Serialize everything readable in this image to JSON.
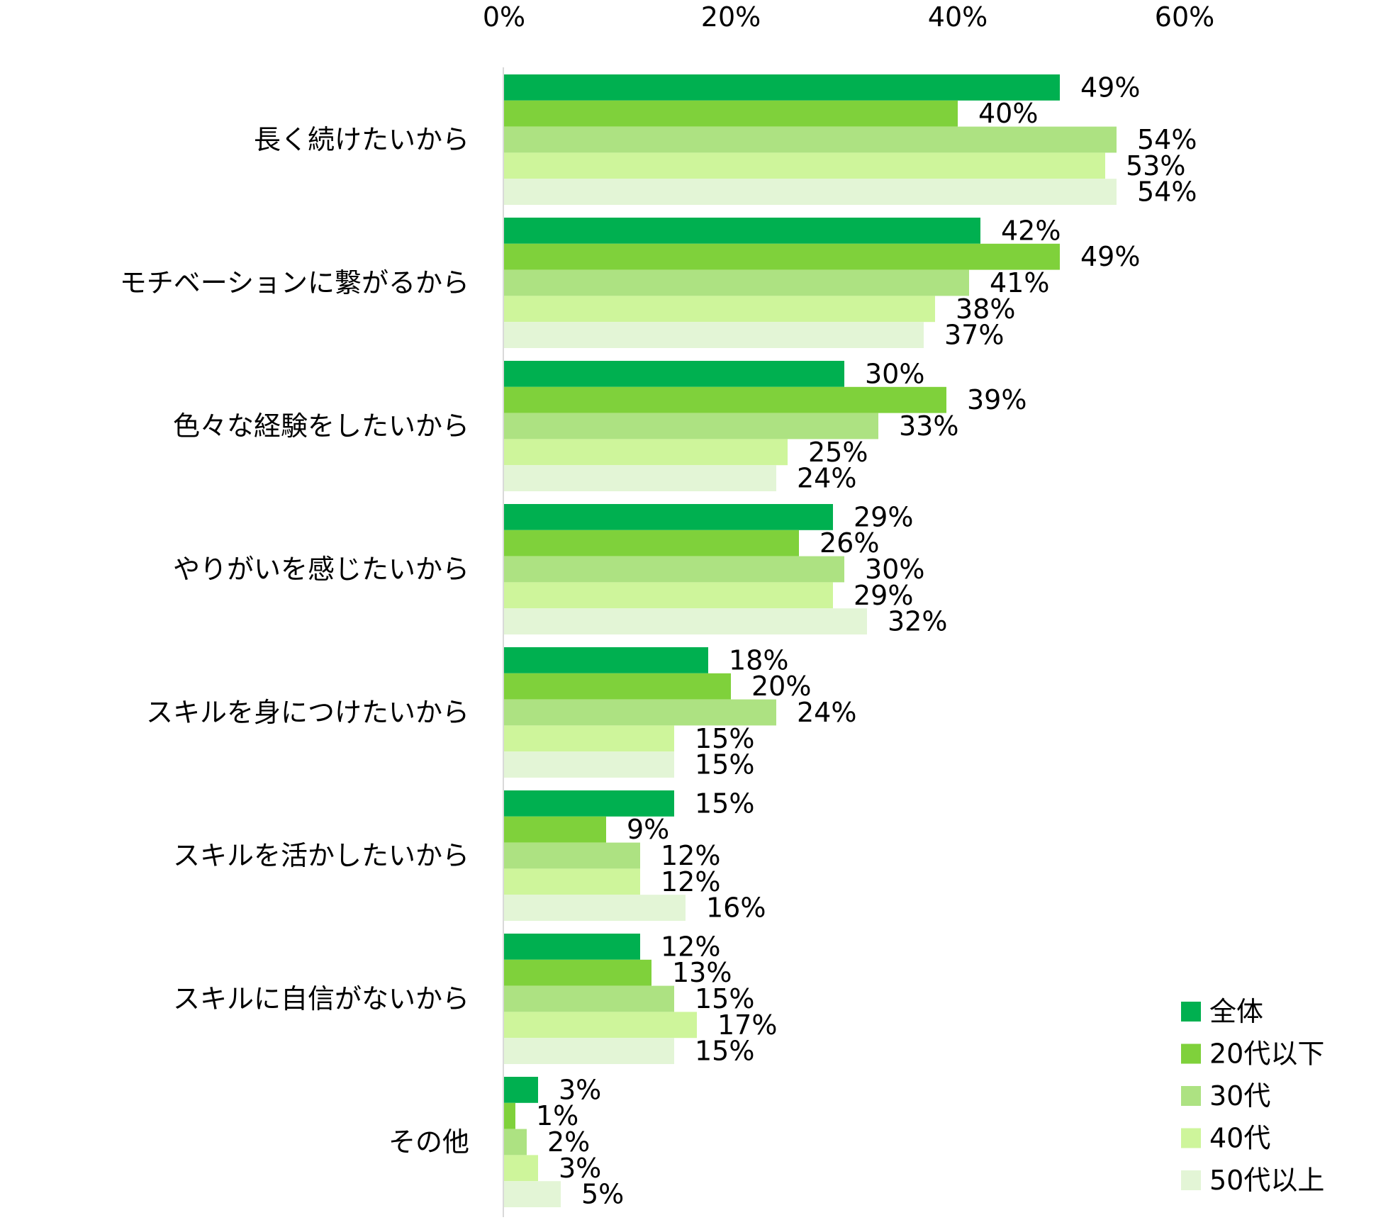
{
  "chart_data": {
    "type": "bar",
    "orientation": "horizontal",
    "title": "",
    "xlabel": "",
    "ylabel": "",
    "xlim": [
      0,
      60
    ],
    "x_ticks": [
      0,
      20,
      40,
      60
    ],
    "x_tick_labels": [
      "0%",
      "20%",
      "40%",
      "60%"
    ],
    "x_axis_position": "top",
    "grid": false,
    "legend_position": "bottom-right",
    "value_suffix": "%",
    "categories": [
      "長く続けたいから",
      "モチベーションに繋がるから",
      "色々な経験をしたいから",
      "やりがいを感じたいから",
      "スキルを身につけたいから",
      "スキルを活かしたいから",
      "スキルに自信がないから",
      "その他"
    ],
    "series": [
      {
        "name": "全体",
        "color": "#00b050",
        "values": [
          49,
          42,
          30,
          29,
          18,
          15,
          12,
          3
        ]
      },
      {
        "name": "20代以下",
        "color": "#7fd13b",
        "values": [
          40,
          49,
          39,
          26,
          20,
          9,
          13,
          1
        ]
      },
      {
        "name": "30代",
        "color": "#ade282",
        "values": [
          54,
          41,
          33,
          30,
          24,
          12,
          15,
          2
        ]
      },
      {
        "name": "40代",
        "color": "#cef59b",
        "values": [
          53,
          38,
          25,
          29,
          15,
          12,
          17,
          3
        ]
      },
      {
        "name": "50代以上",
        "color": "#e3f5d6",
        "values": [
          54,
          37,
          24,
          32,
          15,
          16,
          15,
          5
        ]
      }
    ]
  }
}
